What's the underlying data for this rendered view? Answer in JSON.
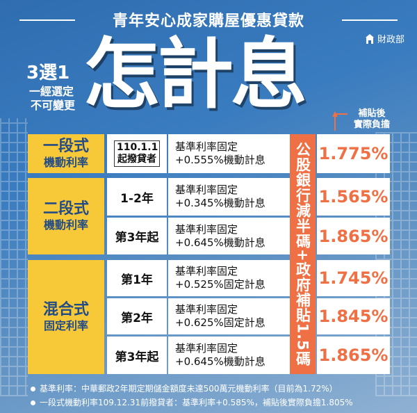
{
  "header": {
    "title": "青年安心成家購屋優惠貸款",
    "ministry": "財政部"
  },
  "promo": {
    "choose": "3選1",
    "choose_line1": "一經選定",
    "choose_line2": "不可變更",
    "headline": "怎計息",
    "subsidy_label_line1": "補貼後",
    "subsidy_label_line2": "實際負擔"
  },
  "discount_note": "公股銀行減半碼+政府補貼1.5碼",
  "plans": [
    {
      "name": "一段式",
      "type": "機動利率",
      "rows": [
        {
          "period_tag": "110.1.1起撥貸者",
          "desc_line1": "基準利率固定",
          "desc_line2": "+0.555%機動計息",
          "rate": "1.775%"
        }
      ]
    },
    {
      "name": "二段式",
      "type": "機動利率",
      "rows": [
        {
          "period": "1-2年",
          "desc_line1": "基準利率固定",
          "desc_line2": "+0.345%機動計息",
          "rate": "1.565%"
        },
        {
          "period": "第3年起",
          "desc_line1": "基準利率固定",
          "desc_line2": "+0.645%機動計息",
          "rate": "1.865%"
        }
      ]
    },
    {
      "name": "混合式",
      "type": "固定利率",
      "rows": [
        {
          "period": "第1年",
          "desc_line1": "基準利率固定",
          "desc_line2": "+0.525%固定計息",
          "rate": "1.745%"
        },
        {
          "period": "第2年",
          "desc_line1": "基準利率固定",
          "desc_line2": "+0.625%固定計息",
          "rate": "1.845%"
        },
        {
          "period": "第3年起",
          "desc_line1": "基準利率固定",
          "desc_line2": "+0.645%機動計息",
          "rate": "1.865%"
        }
      ]
    }
  ],
  "notes": [
    "基準利率：中華郵政2年期定期儲金額度未達500萬元機動利率（目前為1.72%）",
    "一段式機動利率109.12.31前撥貸者：基準利率+0.585%，補貼後實際負擔1.805%"
  ],
  "colors": {
    "accent": "#ef7044",
    "highlight": "#f7c938",
    "navy": "#234c86"
  }
}
